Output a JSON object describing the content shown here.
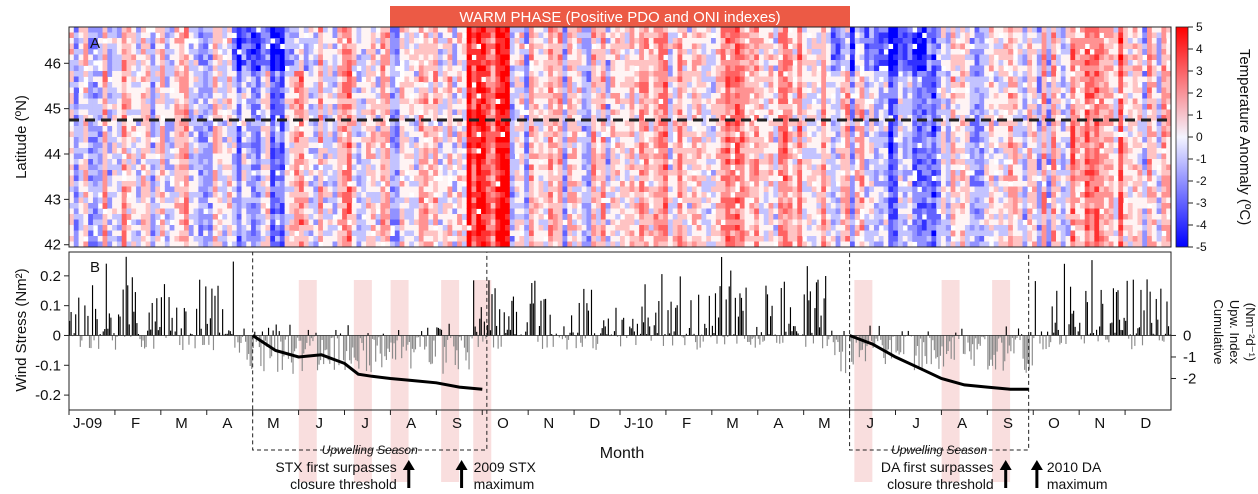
{
  "chart_data": [
    {
      "panel": "A",
      "type": "heatmap",
      "banner": "WARM PHASE (Positive PDO and ONI indexes)",
      "ylabel": "Latitude (ºN)",
      "yticks": [
        "42",
        "43",
        "44",
        "45",
        "46"
      ],
      "ylim": [
        42,
        46.8
      ],
      "reference_line_lat": 44.75,
      "colorbar": {
        "label": "Temperature Anomaly (ºC)",
        "ticks": [
          "5",
          "4",
          "3",
          "2",
          "1",
          "0",
          "-1",
          "-2",
          "-3",
          "-4",
          "-5"
        ],
        "range": [
          -5,
          5
        ],
        "colors": {
          "positive": "#ff0000",
          "negative": "#0000ff",
          "neutral": "#f4f4ff"
        }
      }
    },
    {
      "panel": "B",
      "type": "bar",
      "ylabel": "Wind Stress (Nm²)",
      "yticks": [
        "0.2",
        "0.1",
        "0",
        "-0.1",
        "-0.2"
      ],
      "ylim": [
        -0.25,
        0.28
      ],
      "xlabel": "Month",
      "months": [
        "J-09",
        "F",
        "M",
        "A",
        "M",
        "J",
        "J",
        "A",
        "S",
        "O",
        "N",
        "D",
        "J-10",
        "F",
        "M",
        "A",
        "M",
        "J",
        "J",
        "A",
        "S",
        "O",
        "N",
        "D"
      ],
      "right_axis": {
        "label_lines": [
          "Cumulative",
          "Upw. Index",
          "(Nm⁻²d⁻¹)"
        ],
        "ticks": [
          "0",
          "-1",
          "-2"
        ],
        "range": [
          -3,
          0
        ]
      },
      "upwelling_seasons": [
        {
          "label": "Upwelling Season",
          "start_month": 4.0,
          "end_month": 9.1
        },
        {
          "label": "Upwelling Season",
          "start_month": 17.0,
          "end_month": 20.9
        }
      ],
      "cumulative_upwelling": [
        {
          "x": [
            4.0,
            4.5,
            5.0,
            5.5,
            6.0,
            6.3,
            6.6,
            7.0,
            7.5,
            8.0,
            8.5,
            9.0
          ],
          "y": [
            0,
            -0.7,
            -1.0,
            -0.9,
            -1.3,
            -1.8,
            -1.9,
            -2.0,
            -2.1,
            -2.2,
            -2.4,
            -2.5
          ]
        },
        {
          "x": [
            17.0,
            17.5,
            18.0,
            18.5,
            19.0,
            19.5,
            20.0,
            20.5,
            20.9
          ],
          "y": [
            0,
            -0.4,
            -1.0,
            -1.5,
            -2.0,
            -2.3,
            -2.4,
            -2.5,
            -2.5
          ]
        }
      ],
      "highlight_months": [
        5.2,
        6.4,
        7.2,
        8.3,
        9.0,
        17.3,
        19.2,
        20.3
      ]
    }
  ],
  "annotations": [
    {
      "lines": [
        "STX first surpasses",
        "closure threshold"
      ]
    },
    {
      "lines": [
        "2009 STX",
        "maximum"
      ]
    },
    {
      "lines": [
        "DA first surpasses",
        "closure threshold"
      ]
    },
    {
      "lines": [
        "2010 DA",
        "maximum"
      ]
    }
  ]
}
